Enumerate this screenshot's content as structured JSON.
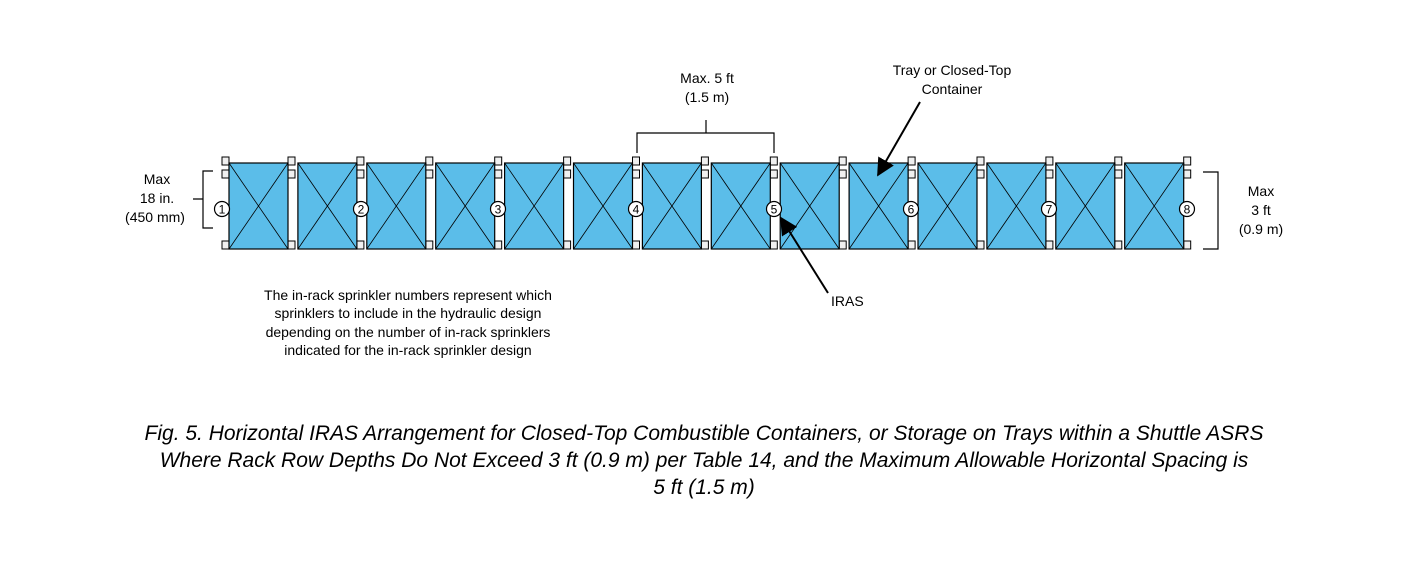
{
  "labels": {
    "spacing": [
      "Max. 5 ft",
      "(1.5 m)"
    ],
    "container": [
      "Tray or Closed-Top",
      "Container"
    ],
    "vertical": [
      "Max",
      "18 in.",
      "(450 mm)"
    ],
    "depth": [
      "Max",
      "3 ft",
      "(0.9 m)"
    ],
    "iras": "IRAS"
  },
  "sprinklers": [
    "1",
    "2",
    "3",
    "4",
    "5",
    "6",
    "7",
    "8"
  ],
  "note": [
    "The in-rack sprinkler numbers represent which",
    "sprinklers to include in the hydraulic design",
    "depending on the number of in-rack sprinklers",
    "indicated for the in-rack sprinkler design"
  ],
  "caption": [
    "Fig. 5. Horizontal IRAS Arrangement for Closed-Top Combustible Containers, or Storage on Trays within a Shuttle ASRS",
    "Where Rack Row Depths Do Not Exceed 3 ft (0.9 m) per Table 14, and the Maximum Allowable Horizontal Spacing is",
    "5 ft (1.5 m)"
  ],
  "colors": {
    "container_fill": "#5bbde9",
    "line": "#000000",
    "upright": "#f0f0f0"
  }
}
